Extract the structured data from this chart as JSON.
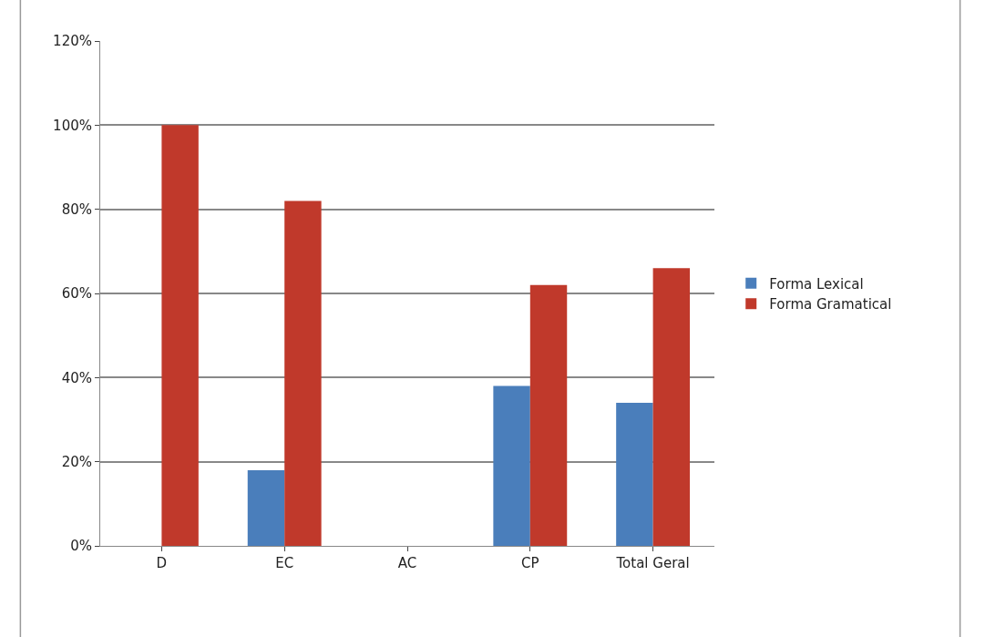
{
  "chart_data": {
    "type": "bar",
    "categories": [
      "D",
      "EC",
      "AC",
      "CP",
      "Total Geral"
    ],
    "series": [
      {
        "name": "Forma Lexical",
        "color": "#4a7ebb",
        "values": [
          0,
          18,
          0,
          38,
          34
        ]
      },
      {
        "name": "Forma Gramatical",
        "color": "#c0392b",
        "values": [
          100,
          82,
          0,
          62,
          66
        ]
      }
    ],
    "ylim": [
      0,
      120
    ],
    "yticks": [
      {
        "value": 0,
        "label": "0%"
      },
      {
        "value": 20,
        "label": "20%"
      },
      {
        "value": 40,
        "label": "40%"
      },
      {
        "value": 60,
        "label": "60%"
      },
      {
        "value": 80,
        "label": "80%"
      },
      {
        "value": 100,
        "label": "100%"
      },
      {
        "value": 120,
        "label": "120%"
      }
    ],
    "grid": "y",
    "legend": "right"
  }
}
